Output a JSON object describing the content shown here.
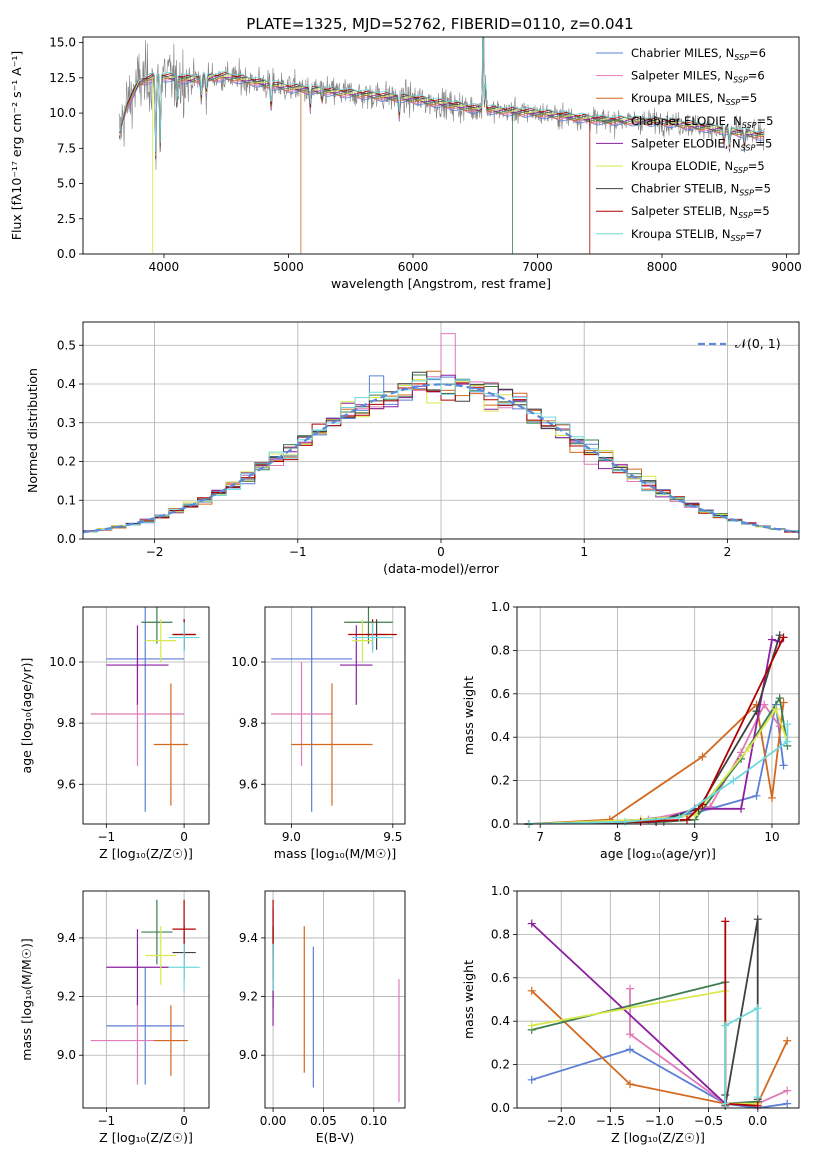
{
  "title": "PLATE=1325, MJD=52762, FIBERID=0110, z=0.041",
  "colors": {
    "chabrier_miles": "#5b7fd6",
    "salpeter_miles": "#e07ab8",
    "kroupa_miles": "#d2691e",
    "chabrier_elodie": "#3e7d4e",
    "salpeter_elodie": "#8b1fa0",
    "kroupa_elodie": "#d8e84a",
    "chabrier_stelib": "#404040",
    "salpeter_stelib": "#b00000",
    "kroupa_stelib": "#6fd8dc",
    "grid": "#b0b0b0",
    "gaussian": "#5b8bd6"
  },
  "chart_data": [
    {
      "type": "line",
      "xlabel": "wavelength [Angstrom, rest frame]",
      "ylabel": "Flux [fλ10⁻¹⁷ erg cm⁻² s⁻¹ A⁻¹]",
      "xlim": [
        3350,
        9100
      ],
      "ylim": [
        0,
        15.4
      ],
      "xticks": [
        4000,
        5000,
        6000,
        7000,
        8000,
        9000
      ],
      "yticks": [
        0.0,
        2.5,
        5.0,
        7.5,
        10.0,
        12.5,
        15.0
      ],
      "legend_position": "top-right",
      "continuum": [
        [
          3650,
          9.0
        ],
        [
          3700,
          10.5
        ],
        [
          3800,
          12.2
        ],
        [
          3950,
          12.6
        ],
        [
          4200,
          12.4
        ],
        [
          4500,
          12.6
        ],
        [
          4800,
          12.1
        ],
        [
          5000,
          11.8
        ],
        [
          5500,
          11.4
        ],
        [
          6000,
          11.0
        ],
        [
          6500,
          10.3
        ],
        [
          7000,
          10.0
        ],
        [
          7500,
          9.5
        ],
        [
          8000,
          9.4
        ],
        [
          8500,
          8.8
        ],
        [
          8800,
          8.4
        ]
      ],
      "legend": [
        {
          "name": "Chabrier MILES, N_SSP=6",
          "color_key": "chabrier_miles"
        },
        {
          "name": "Salpeter MILES, N_SSP=6",
          "color_key": "salpeter_miles"
        },
        {
          "name": "Kroupa MILES, N_SSP=5",
          "color_key": "kroupa_miles"
        },
        {
          "name": "Chabrier ELODIE, N_SSP=5",
          "color_key": "chabrier_elodie"
        },
        {
          "name": "Salpeter ELODIE, N_SSP=5",
          "color_key": "salpeter_elodie"
        },
        {
          "name": "Kroupa ELODIE, N_SSP=5",
          "color_key": "kroupa_elodie"
        },
        {
          "name": "Chabrier STELIB, N_SSP=5",
          "color_key": "chabrier_stelib"
        },
        {
          "name": "Salpeter STELIB, N_SSP=5",
          "color_key": "salpeter_stelib"
        },
        {
          "name": "Kroupa STELIB, N_SSP=7",
          "color_key": "kroupa_stelib"
        }
      ]
    },
    {
      "type": "histogram",
      "xlabel": "(data-model)/error",
      "ylabel": "Normed distribution",
      "xlim": [
        -2.5,
        2.5
      ],
      "ylim": [
        0,
        0.56
      ],
      "xticks": [
        -2,
        -1,
        0,
        1,
        2
      ],
      "yticks": [
        0.0,
        0.1,
        0.2,
        0.3,
        0.4,
        0.5
      ],
      "legend": "𝒩(0, 1)",
      "legend_position": "top-right",
      "bin_width": 0.1
    },
    {
      "type": "errorbar",
      "xlabel": "Z [log₁₀(Z/Z☉)]",
      "ylabel": "age  [log₁₀(age/yr)]",
      "xlim": [
        -1.3,
        0.32
      ],
      "ylim": [
        9.47,
        10.18
      ],
      "xticks": [
        -1,
        0
      ],
      "yticks": [
        9.6,
        9.8,
        10.0
      ],
      "points": [
        {
          "key": "chabrier_miles",
          "x": -0.5,
          "xerr": 0.5,
          "y": 10.01,
          "yerr": 0.5
        },
        {
          "key": "salpeter_miles",
          "x": -0.6,
          "xerr": 0.6,
          "y": 9.83,
          "yerr": 0.17
        },
        {
          "key": "kroupa_miles",
          "x": -0.17,
          "xerr": 0.22,
          "y": 9.73,
          "yerr": 0.2
        },
        {
          "key": "chabrier_elodie",
          "x": -0.35,
          "xerr": 0.2,
          "y": 10.13,
          "yerr": 0.07
        },
        {
          "key": "salpeter_elodie",
          "x": -0.6,
          "xerr": 0.4,
          "y": 9.99,
          "yerr": 0.13
        },
        {
          "key": "kroupa_elodie",
          "x": -0.3,
          "xerr": 0.2,
          "y": 10.07,
          "yerr": 0.07
        },
        {
          "key": "chabrier_stelib",
          "x": 0.0,
          "xerr": 0.15,
          "y": 10.09,
          "yerr": 0.05
        },
        {
          "key": "salpeter_stelib",
          "x": 0.0,
          "xerr": 0.15,
          "y": 10.09,
          "yerr": 0.05
        },
        {
          "key": "kroupa_stelib",
          "x": 0.0,
          "xerr": 0.2,
          "y": 10.08,
          "yerr": 0.05
        }
      ]
    },
    {
      "type": "errorbar",
      "xlabel": "mass [log₁₀(M/M☉)]",
      "xlim": [
        8.87,
        9.56
      ],
      "ylim": [
        9.47,
        10.18
      ],
      "xticks": [
        9.0,
        9.5
      ],
      "yticks": [
        9.6,
        9.8,
        10.0
      ],
      "points": [
        {
          "key": "chabrier_miles",
          "x": 9.1,
          "xerr": 0.2,
          "y": 10.01,
          "yerr": 0.5
        },
        {
          "key": "salpeter_miles",
          "x": 9.05,
          "xerr": 0.15,
          "y": 9.83,
          "yerr": 0.17
        },
        {
          "key": "kroupa_miles",
          "x": 9.2,
          "xerr": 0.2,
          "y": 9.73,
          "yerr": 0.2
        },
        {
          "key": "chabrier_elodie",
          "x": 9.38,
          "xerr": 0.12,
          "y": 10.13,
          "yerr": 0.07
        },
        {
          "key": "salpeter_elodie",
          "x": 9.32,
          "xerr": 0.08,
          "y": 9.99,
          "yerr": 0.13
        },
        {
          "key": "kroupa_elodie",
          "x": 9.35,
          "xerr": 0.05,
          "y": 10.07,
          "yerr": 0.07
        },
        {
          "key": "chabrier_stelib",
          "x": 9.42,
          "xerr": 0.05,
          "y": 10.09,
          "yerr": 0.05
        },
        {
          "key": "salpeter_stelib",
          "x": 9.4,
          "xerr": 0.12,
          "y": 10.09,
          "yerr": 0.05
        },
        {
          "key": "kroupa_stelib",
          "x": 9.4,
          "xerr": 0.1,
          "y": 10.08,
          "yerr": 0.05
        }
      ]
    },
    {
      "type": "line",
      "xlabel": "age  [log₁₀(age/yr)]",
      "ylabel": "mass weight",
      "xlim": [
        6.7,
        10.35
      ],
      "ylim": [
        0,
        1
      ],
      "xticks": [
        7,
        8,
        9,
        10
      ],
      "yticks": [
        0.0,
        0.2,
        0.4,
        0.6,
        0.8,
        1.0
      ],
      "series": [
        {
          "key": "chabrier_miles",
          "x": [
            6.85,
            8.3,
            9.0,
            9.8,
            10.05,
            10.15
          ],
          "y": [
            0.0,
            0.02,
            0.05,
            0.13,
            0.55,
            0.27
          ]
        },
        {
          "key": "salpeter_miles",
          "x": [
            6.85,
            8.4,
            9.2,
            9.6,
            9.9,
            10.1
          ],
          "y": [
            0.0,
            0.02,
            0.08,
            0.33,
            0.55,
            0.45
          ]
        },
        {
          "key": "kroupa_miles",
          "x": [
            6.85,
            7.9,
            9.1,
            9.8,
            10.0,
            10.15
          ],
          "y": [
            0.0,
            0.02,
            0.31,
            0.55,
            0.12,
            0.56
          ]
        },
        {
          "key": "chabrier_elodie",
          "x": [
            6.85,
            8.6,
            9.0,
            9.6,
            10.1,
            10.2
          ],
          "y": [
            0.0,
            0.01,
            0.02,
            0.3,
            0.58,
            0.36
          ]
        },
        {
          "key": "salpeter_elodie",
          "x": [
            6.85,
            8.5,
            9.0,
            9.6,
            10.0,
            10.1
          ],
          "y": [
            0.0,
            0.01,
            0.07,
            0.07,
            0.85,
            0.84
          ]
        },
        {
          "key": "kroupa_elodie",
          "x": [
            6.85,
            8.3,
            9.0,
            9.7,
            10.05,
            10.2
          ],
          "y": [
            0.0,
            0.02,
            0.04,
            0.35,
            0.53,
            0.38
          ]
        },
        {
          "key": "chabrier_stelib",
          "x": [
            6.85,
            8.5,
            9.05,
            9.8,
            10.1
          ],
          "y": [
            0.0,
            0.01,
            0.07,
            0.52,
            0.87
          ]
        },
        {
          "key": "salpeter_stelib",
          "x": [
            6.85,
            8.3,
            8.9,
            9.1,
            10.15
          ],
          "y": [
            0.0,
            0.01,
            0.02,
            0.09,
            0.86
          ]
        },
        {
          "key": "kroupa_stelib",
          "x": [
            6.85,
            8.1,
            8.8,
            9.5,
            10.2,
            10.2
          ],
          "y": [
            0.0,
            0.01,
            0.03,
            0.2,
            0.38,
            0.46
          ]
        }
      ]
    },
    {
      "type": "errorbar",
      "xlabel": "Z [log₁₀(Z/Z☉)]",
      "ylabel": "mass [log₁₀(M/M☉)]",
      "xlim": [
        -1.3,
        0.32
      ],
      "ylim": [
        8.82,
        9.56
      ],
      "xticks": [
        -1,
        0
      ],
      "yticks": [
        9.0,
        9.2,
        9.4
      ],
      "points": [
        {
          "key": "chabrier_miles",
          "x": -0.5,
          "xerr": 0.5,
          "y": 9.1,
          "yerr": 0.2
        },
        {
          "key": "salpeter_miles",
          "x": -0.6,
          "xerr": 0.6,
          "y": 9.05,
          "yerr": 0.15
        },
        {
          "key": "kroupa_miles",
          "x": -0.17,
          "xerr": 0.22,
          "y": 9.05,
          "yerr": 0.12
        },
        {
          "key": "chabrier_elodie",
          "x": -0.35,
          "xerr": 0.2,
          "y": 9.42,
          "yerr": 0.11
        },
        {
          "key": "salpeter_elodie",
          "x": -0.6,
          "xerr": 0.4,
          "y": 9.3,
          "yerr": 0.13
        },
        {
          "key": "kroupa_elodie",
          "x": -0.3,
          "xerr": 0.2,
          "y": 9.34,
          "yerr": 0.1
        },
        {
          "key": "chabrier_stelib",
          "x": 0.0,
          "xerr": 0.15,
          "y": 9.35,
          "yerr": 0.09
        },
        {
          "key": "salpeter_stelib",
          "x": 0.0,
          "xerr": 0.15,
          "y": 9.43,
          "yerr": 0.1
        },
        {
          "key": "kroupa_stelib",
          "x": 0.0,
          "xerr": 0.2,
          "y": 9.3,
          "yerr": 0.08
        }
      ]
    },
    {
      "type": "errorbar",
      "xlabel": "E(B-V)",
      "xlim": [
        -0.008,
        0.131
      ],
      "ylim": [
        8.82,
        9.56
      ],
      "xticks": [
        0.0,
        0.05,
        0.1
      ],
      "yticks": [
        9.0,
        9.2,
        9.4
      ],
      "points": [
        {
          "key": "chabrier_miles",
          "x": 0.04,
          "y": 9.13,
          "yerr": 0.24
        },
        {
          "key": "salpeter_miles",
          "x": 0.125,
          "y": 9.05,
          "yerr": 0.21
        },
        {
          "key": "kroupa_miles",
          "x": 0.031,
          "y": 9.19,
          "yerr": 0.25
        },
        {
          "key": "chabrier_elodie",
          "x": 0.0,
          "y": 9.3,
          "yerr": 0.14
        },
        {
          "key": "salpeter_elodie",
          "x": 0.0,
          "y": 9.3,
          "yerr": 0.2
        },
        {
          "key": "kroupa_elodie",
          "x": 0.0,
          "y": 9.34,
          "yerr": 0.1
        },
        {
          "key": "chabrier_stelib",
          "x": 0.0,
          "y": 9.35,
          "yerr": 0.09
        },
        {
          "key": "salpeter_stelib",
          "x": 0.0,
          "y": 9.43,
          "yerr": 0.1
        },
        {
          "key": "kroupa_stelib",
          "x": 0.0,
          "y": 9.3,
          "yerr": 0.08
        }
      ]
    },
    {
      "type": "line",
      "xlabel": "Z [log₁₀(Z/Z☉)]",
      "ylabel": "mass weight",
      "xlim": [
        -2.45,
        0.42
      ],
      "ylim": [
        0,
        1
      ],
      "xticks": [
        -2.0,
        -1.5,
        -1.0,
        -0.5,
        0.0
      ],
      "yticks": [
        0.0,
        0.2,
        0.4,
        0.6,
        0.8,
        1.0
      ],
      "series": [
        {
          "key": "chabrier_miles",
          "x": [
            -2.3,
            -1.3,
            -0.33,
            0.0,
            0.3
          ],
          "y": [
            0.13,
            0.27,
            0.02,
            0.0,
            0.02
          ]
        },
        {
          "key": "salpeter_miles",
          "x": [
            -1.3,
            -1.3,
            -0.33,
            0.0,
            0.3
          ],
          "y": [
            0.55,
            0.34,
            0.02,
            0.02,
            0.08
          ]
        },
        {
          "key": "kroupa_miles",
          "x": [
            -2.3,
            -1.3,
            -0.33,
            0.0,
            0.3
          ],
          "y": [
            0.54,
            0.11,
            0.02,
            0.02,
            0.31
          ]
        },
        {
          "key": "chabrier_elodie",
          "x": [
            -2.3,
            -0.33,
            -0.33,
            0.0
          ],
          "y": [
            0.36,
            0.58,
            0.02,
            0.03
          ]
        },
        {
          "key": "salpeter_elodie",
          "x": [
            -2.3,
            -0.33,
            0.0
          ],
          "y": [
            0.85,
            0.02,
            0.02
          ]
        },
        {
          "key": "kroupa_elodie",
          "x": [
            -2.3,
            -0.33,
            -0.33,
            0.0
          ],
          "y": [
            0.38,
            0.54,
            0.02,
            0.02
          ]
        },
        {
          "key": "chabrier_stelib",
          "x": [
            -0.33,
            -0.33,
            0.0,
            0.0
          ],
          "y": [
            0.06,
            0.01,
            0.87,
            0.04
          ]
        },
        {
          "key": "salpeter_stelib",
          "x": [
            -0.33,
            -0.33,
            0.0
          ],
          "y": [
            0.86,
            0.02,
            0.01
          ]
        },
        {
          "key": "kroupa_stelib",
          "x": [
            -0.33,
            -0.33,
            0.0,
            0.0
          ],
          "y": [
            0.02,
            0.38,
            0.46,
            0.05
          ]
        }
      ]
    }
  ]
}
